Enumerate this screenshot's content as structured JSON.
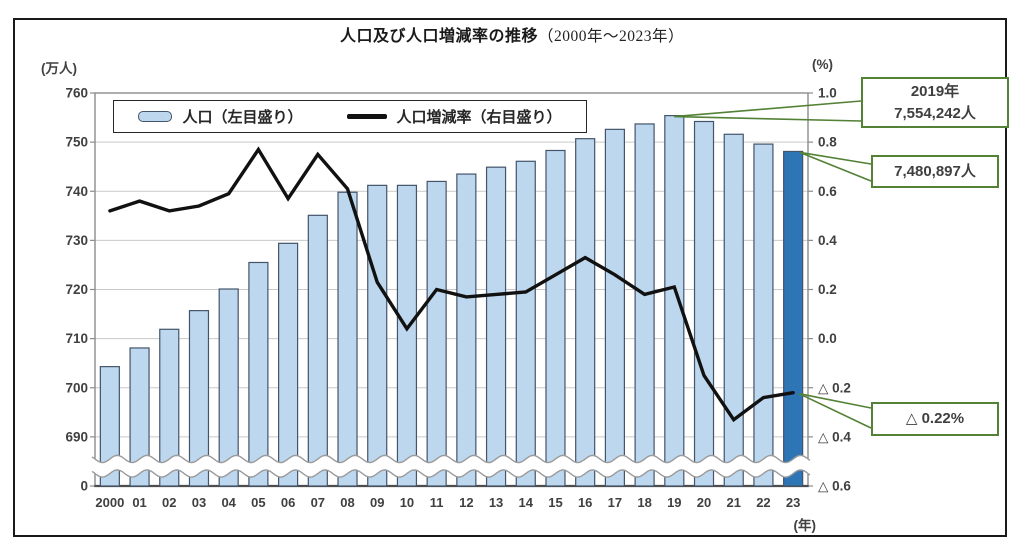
{
  "title": {
    "main": "人口及び人口増減率の推移",
    "sub": "（2000年～2023年）"
  },
  "axes": {
    "left_unit": "(万人)",
    "right_unit": "(%)",
    "x_unit": "(年)"
  },
  "legend": {
    "bar_label": "人口（左目盛り）",
    "line_label": "人口増減率（右目盛り）"
  },
  "callouts": {
    "c2019": {
      "line1": "2019年",
      "line2": "7,554,242人"
    },
    "c2023_pop": {
      "text": "7,480,897人"
    },
    "c2023_rate": {
      "text": "△ 0.22%"
    }
  },
  "colors": {
    "bar_fill": "#bdd7ee",
    "bar_border": "#44546a",
    "bar_highlight": "#2e75b6",
    "rate_line": "#111111",
    "callout_green": "#538135",
    "gridline": "#c9c9c9",
    "plot_border": "#8c8c8c",
    "baseline": "#4d4d4d",
    "text": "#404040"
  },
  "chart_data": {
    "type": "bar+line",
    "title": "人口及び人口増減率の推移（2000年～2023年）",
    "categories": [
      "2000",
      "01",
      "02",
      "03",
      "04",
      "05",
      "06",
      "07",
      "08",
      "09",
      "10",
      "11",
      "12",
      "13",
      "14",
      "15",
      "16",
      "17",
      "18",
      "19",
      "20",
      "21",
      "22",
      "23"
    ],
    "series": [
      {
        "name": "人口（左目盛り）",
        "type": "bar",
        "axis": "left",
        "unit": "万人",
        "values": [
          704.3,
          708.1,
          711.9,
          715.7,
          720.1,
          725.5,
          729.4,
          735.1,
          739.8,
          741.2,
          741.2,
          742.0,
          743.5,
          744.9,
          746.1,
          748.3,
          750.7,
          752.6,
          753.7,
          755.4,
          754.2,
          751.6,
          749.6,
          748.1
        ],
        "highlight_index": 23
      },
      {
        "name": "人口増減率（右目盛り）",
        "type": "line",
        "axis": "right",
        "unit": "%",
        "values": [
          0.52,
          0.56,
          0.52,
          0.54,
          0.59,
          0.77,
          0.57,
          0.75,
          0.61,
          0.23,
          0.04,
          0.2,
          0.17,
          0.18,
          0.19,
          0.26,
          0.33,
          0.26,
          0.18,
          0.21,
          -0.15,
          -0.33,
          -0.24,
          -0.22
        ]
      }
    ],
    "left_axis": {
      "unit": "(万人)",
      "max": 760,
      "step": 10,
      "tick_labels": [
        "760",
        "750",
        "740",
        "730",
        "720",
        "710",
        "700",
        "690",
        "0"
      ],
      "broken_axis": true
    },
    "right_axis": {
      "unit": "(%)",
      "max": 1.0,
      "step": 0.2,
      "tick_labels": [
        "1.0",
        "0.8",
        "0.6",
        "0.4",
        "0.2",
        "0.0",
        "△ 0.2",
        "△ 0.4",
        "△ 0.6"
      ]
    },
    "x_axis": {
      "unit": "(年)"
    },
    "annotations": [
      {
        "target_year": "2019",
        "text": "2019年 7,554,242人"
      },
      {
        "target_year": "2023",
        "text": "7,480,897人"
      },
      {
        "target_year": "2023",
        "text": "△ 0.22%"
      }
    ],
    "legend_position": "top-left-inside",
    "grid": "horizontal-only"
  }
}
